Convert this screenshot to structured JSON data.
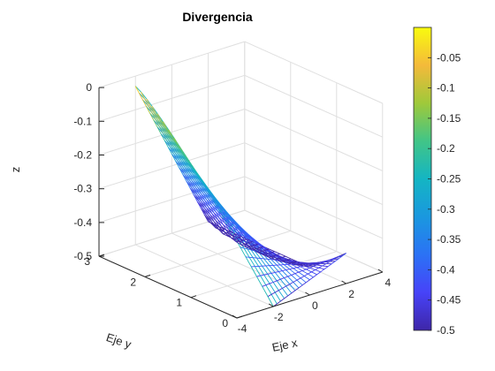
{
  "chart_data": {
    "type": "surface",
    "title": "Divergencia",
    "xlabel": "Eje x",
    "ylabel": "Eje y",
    "zlabel": "z",
    "xlim": [
      -4,
      4
    ],
    "ylim": [
      0,
      3
    ],
    "zlim": [
      -0.5,
      0
    ],
    "xticks": [
      "-4",
      "-2",
      "0",
      "2",
      "4"
    ],
    "yticks": [
      "0",
      "1",
      "2",
      "3"
    ],
    "zticks": [
      "-0.5",
      "-0.4",
      "-0.3",
      "-0.2",
      "-0.1",
      "0"
    ],
    "grid": true,
    "colormap": "parula",
    "colorbar": {
      "limits": [
        -0.5,
        0
      ],
      "ticks": [
        "-0.5",
        "-0.45",
        "-0.4",
        "-0.35",
        "-0.3",
        "-0.25",
        "-0.2",
        "-0.15",
        "-0.1",
        "-0.05"
      ],
      "placement": "right"
    },
    "surface": {
      "x_range": [
        -2,
        2
      ],
      "y_range": [
        0,
        3
      ],
      "description_points": [
        {
          "x": -2,
          "y": 3,
          "z": -0.03
        },
        {
          "x": -2,
          "y": 0,
          "z": -0.47
        },
        {
          "x": 2,
          "y": 3,
          "z": -0.5
        },
        {
          "x": 2,
          "y": 0,
          "z": -0.38
        }
      ]
    },
    "colors": {
      "high": "#f9fb0e",
      "low": "#3e26a8",
      "grid": "#dfdfdf",
      "axis": "#262626"
    }
  }
}
